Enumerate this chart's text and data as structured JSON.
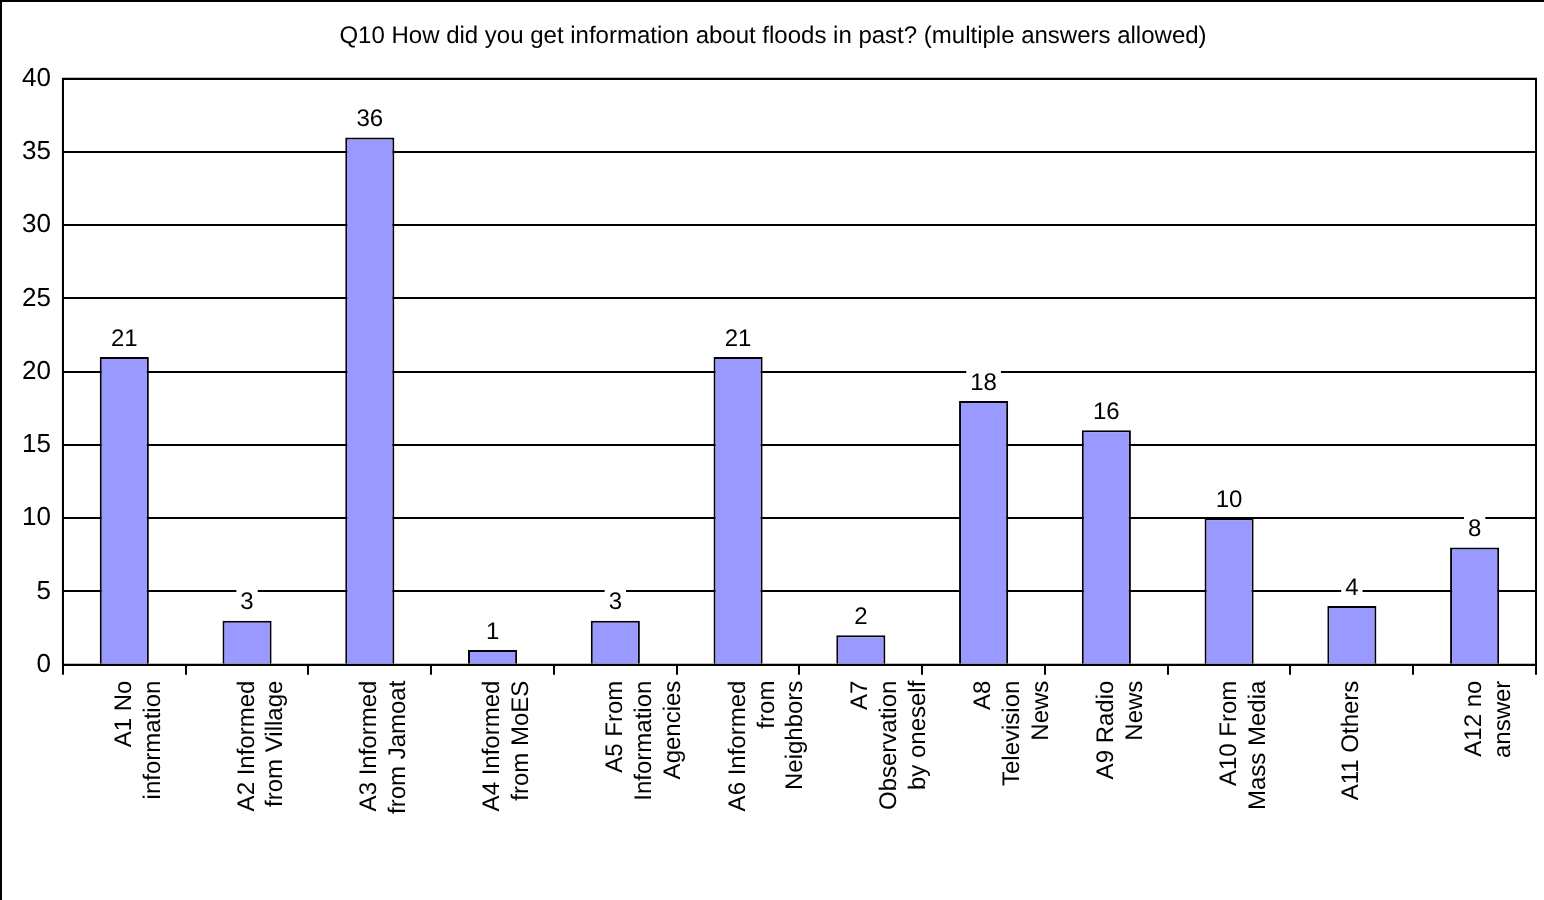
{
  "chart_data": {
    "type": "bar",
    "title": "Q10 How did you get information about floods in past? (multiple answers allowed)",
    "categories": [
      "A1 No\ninformation",
      "A2 Informed\nfrom Village",
      "A3 Informed\nfrom Jamoat",
      "A4 Informed\nfrom MoES",
      "A5 From\nInformation\nAgencies",
      "A6 Informed\nfrom\nNeighbors",
      "A7\nObservation\nby oneself",
      "A8\nTelevision\nNews",
      "A9 Radio\nNews",
      "A10 From\nMass Media",
      "A11 Others",
      "A12 no\nanswer"
    ],
    "values": [
      21,
      3,
      36,
      1,
      3,
      21,
      2,
      18,
      16,
      10,
      4,
      8
    ],
    "color": "#9999ff",
    "ylim": [
      0,
      40
    ],
    "yticks": [
      0,
      5,
      10,
      15,
      20,
      25,
      30,
      35,
      40
    ],
    "grid": "y",
    "data_labels": true,
    "legend": false
  }
}
